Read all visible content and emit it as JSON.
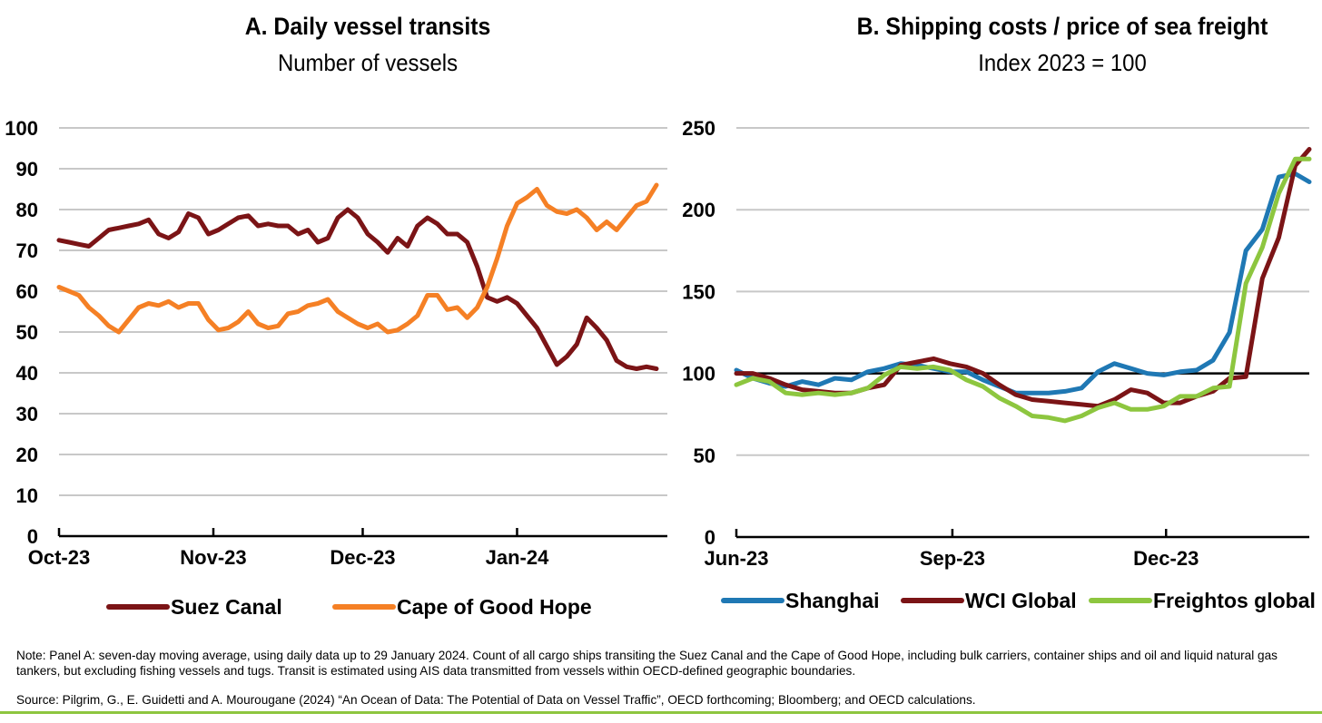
{
  "chart_data": [
    {
      "type": "line",
      "title": "A. Daily vessel transits",
      "subtitle": "Number of vessels",
      "xlabel": "",
      "ylabel": "",
      "x_tick_labels": [
        "Oct-23",
        "Nov-23",
        "Dec-23",
        "Jan-24"
      ],
      "y_ticks": [
        0,
        10,
        20,
        30,
        40,
        50,
        60,
        70,
        80,
        90,
        100
      ],
      "ylim": [
        0,
        100
      ],
      "x_range": [
        "2023-10-01",
        "2024-01-29"
      ],
      "grid": true,
      "legend_position": "bottom",
      "series": [
        {
          "name": "Suez Canal",
          "color": "#7b1416",
          "x": [
            "2023-10-01",
            "2023-10-03",
            "2023-10-05",
            "2023-10-07",
            "2023-10-09",
            "2023-10-11",
            "2023-10-13",
            "2023-10-15",
            "2023-10-17",
            "2023-10-19",
            "2023-10-21",
            "2023-10-23",
            "2023-10-25",
            "2023-10-27",
            "2023-10-29",
            "2023-10-31",
            "2023-11-02",
            "2023-11-04",
            "2023-11-06",
            "2023-11-08",
            "2023-11-10",
            "2023-11-12",
            "2023-11-14",
            "2023-11-16",
            "2023-11-18",
            "2023-11-20",
            "2023-11-22",
            "2023-11-24",
            "2023-11-26",
            "2023-11-28",
            "2023-11-30",
            "2023-12-02",
            "2023-12-04",
            "2023-12-06",
            "2023-12-08",
            "2023-12-10",
            "2023-12-12",
            "2023-12-14",
            "2023-12-16",
            "2023-12-18",
            "2023-12-20",
            "2023-12-22",
            "2023-12-24",
            "2023-12-26",
            "2023-12-28",
            "2023-12-30",
            "2024-01-01",
            "2024-01-03",
            "2024-01-05",
            "2024-01-07",
            "2024-01-09",
            "2024-01-11",
            "2024-01-13",
            "2024-01-15",
            "2024-01-17",
            "2024-01-19",
            "2024-01-21",
            "2024-01-23",
            "2024-01-25",
            "2024-01-27",
            "2024-01-29"
          ],
          "values": [
            72.5,
            72.0,
            71.5,
            71.0,
            73.0,
            75.0,
            75.5,
            76.0,
            76.5,
            77.5,
            74.0,
            73.0,
            74.5,
            79.0,
            78.0,
            74.0,
            75.0,
            76.5,
            78.0,
            78.5,
            76.0,
            76.5,
            76.0,
            76.0,
            74.0,
            75.0,
            72.0,
            73.0,
            78.0,
            80.0,
            78.0,
            74.0,
            72.0,
            69.5,
            73.0,
            71.0,
            76.0,
            78.0,
            76.5,
            74.0,
            74.0,
            72.0,
            66.0,
            58.5,
            57.5,
            58.5,
            57.0,
            54.0,
            51.0,
            46.5,
            42.0,
            44.0,
            47.0,
            53.5,
            51.0,
            48.0,
            43.0,
            41.5,
            41.0,
            41.5,
            41.0
          ]
        },
        {
          "name": "Cape of Good Hope",
          "color": "#f58025",
          "x": [
            "2023-10-01",
            "2023-10-03",
            "2023-10-05",
            "2023-10-07",
            "2023-10-09",
            "2023-10-11",
            "2023-10-13",
            "2023-10-15",
            "2023-10-17",
            "2023-10-19",
            "2023-10-21",
            "2023-10-23",
            "2023-10-25",
            "2023-10-27",
            "2023-10-29",
            "2023-10-31",
            "2023-11-02",
            "2023-11-04",
            "2023-11-06",
            "2023-11-08",
            "2023-11-10",
            "2023-11-12",
            "2023-11-14",
            "2023-11-16",
            "2023-11-18",
            "2023-11-20",
            "2023-11-22",
            "2023-11-24",
            "2023-11-26",
            "2023-11-28",
            "2023-11-30",
            "2023-12-02",
            "2023-12-04",
            "2023-12-06",
            "2023-12-08",
            "2023-12-10",
            "2023-12-12",
            "2023-12-14",
            "2023-12-16",
            "2023-12-18",
            "2023-12-20",
            "2023-12-22",
            "2023-12-24",
            "2023-12-26",
            "2023-12-28",
            "2023-12-30",
            "2024-01-01",
            "2024-01-03",
            "2024-01-05",
            "2024-01-07",
            "2024-01-09",
            "2024-01-11",
            "2024-01-13",
            "2024-01-15",
            "2024-01-17",
            "2024-01-19",
            "2024-01-21",
            "2024-01-23",
            "2024-01-25",
            "2024-01-27",
            "2024-01-29"
          ],
          "values": [
            61.0,
            60.0,
            59.0,
            56.0,
            54.0,
            51.5,
            50.0,
            53.0,
            56.0,
            57.0,
            56.5,
            57.5,
            56.0,
            57.0,
            57.0,
            53.0,
            50.5,
            51.0,
            52.5,
            55.0,
            52.0,
            51.0,
            51.5,
            54.5,
            55.0,
            56.5,
            57.0,
            58.0,
            55.0,
            53.5,
            52.0,
            51.0,
            52.0,
            50.0,
            50.5,
            52.0,
            54.0,
            59.0,
            59.0,
            55.5,
            56.0,
            53.5,
            56.0,
            61.0,
            68.0,
            76.0,
            81.5,
            83.0,
            85.0,
            81.0,
            79.5,
            79.0,
            80.0,
            78.0,
            75.0,
            77.0,
            75.0,
            78.0,
            81.0,
            82.0,
            86.0
          ]
        }
      ]
    },
    {
      "type": "line",
      "title": "B. Shipping costs / price of sea freight",
      "subtitle": "Index 2023  = 100",
      "xlabel": "",
      "ylabel": "",
      "x_tick_labels": [
        "Jun-23",
        "Sep-23",
        "Dec-23"
      ],
      "y_ticks": [
        0,
        50,
        100,
        150,
        200,
        250
      ],
      "ylim": [
        0,
        250
      ],
      "x_range": [
        "2023-06-01",
        "2024-01-31"
      ],
      "reference_line": 100,
      "grid": true,
      "legend_position": "bottom",
      "series": [
        {
          "name": "Shanghai",
          "color": "#1f78b4",
          "x": [
            "2023-06-01",
            "2023-06-08",
            "2023-06-15",
            "2023-06-22",
            "2023-06-29",
            "2023-07-06",
            "2023-07-13",
            "2023-07-20",
            "2023-07-27",
            "2023-08-03",
            "2023-08-10",
            "2023-08-17",
            "2023-08-24",
            "2023-08-31",
            "2023-09-07",
            "2023-09-14",
            "2023-09-21",
            "2023-09-28",
            "2023-10-05",
            "2023-10-12",
            "2023-10-19",
            "2023-10-26",
            "2023-11-02",
            "2023-11-09",
            "2023-11-16",
            "2023-11-23",
            "2023-11-30",
            "2023-12-07",
            "2023-12-14",
            "2023-12-21",
            "2023-12-28",
            "2024-01-04",
            "2024-01-11",
            "2024-01-18",
            "2024-01-25",
            "2024-01-31"
          ],
          "values": [
            102,
            97,
            94,
            92,
            95,
            93,
            97,
            96,
            101,
            103,
            106,
            105,
            103,
            101,
            101,
            96,
            92,
            88,
            88,
            88,
            89,
            91,
            101,
            106,
            103,
            100,
            99,
            101,
            102,
            108,
            125,
            175,
            188,
            220,
            222,
            217
          ]
        },
        {
          "name": "WCI Global",
          "color": "#7b1416",
          "x": [
            "2023-06-01",
            "2023-06-08",
            "2023-06-15",
            "2023-06-22",
            "2023-06-29",
            "2023-07-06",
            "2023-07-13",
            "2023-07-20",
            "2023-07-27",
            "2023-08-03",
            "2023-08-10",
            "2023-08-17",
            "2023-08-24",
            "2023-08-31",
            "2023-09-07",
            "2023-09-14",
            "2023-09-21",
            "2023-09-28",
            "2023-10-05",
            "2023-10-12",
            "2023-10-19",
            "2023-10-26",
            "2023-11-02",
            "2023-11-09",
            "2023-11-16",
            "2023-11-23",
            "2023-11-30",
            "2023-12-07",
            "2023-12-14",
            "2023-12-21",
            "2023-12-28",
            "2024-01-04",
            "2024-01-11",
            "2024-01-18",
            "2024-01-25",
            "2024-01-31"
          ],
          "values": [
            100,
            100,
            97,
            93,
            90,
            89,
            88,
            88,
            91,
            93,
            105,
            107,
            109,
            106,
            104,
            100,
            93,
            87,
            84,
            83,
            82,
            81,
            80,
            84,
            90,
            88,
            82,
            82,
            86,
            89,
            97,
            98,
            158,
            183,
            227,
            237
          ]
        },
        {
          "name": "Freightos global",
          "color": "#8dc63f",
          "x": [
            "2023-06-01",
            "2023-06-08",
            "2023-06-15",
            "2023-06-22",
            "2023-06-29",
            "2023-07-06",
            "2023-07-13",
            "2023-07-20",
            "2023-07-27",
            "2023-08-03",
            "2023-08-10",
            "2023-08-17",
            "2023-08-24",
            "2023-08-31",
            "2023-09-07",
            "2023-09-14",
            "2023-09-21",
            "2023-09-28",
            "2023-10-05",
            "2023-10-12",
            "2023-10-19",
            "2023-10-26",
            "2023-11-02",
            "2023-11-09",
            "2023-11-16",
            "2023-11-23",
            "2023-11-30",
            "2023-12-07",
            "2023-12-14",
            "2023-12-21",
            "2023-12-28",
            "2024-01-04",
            "2024-01-11",
            "2024-01-18",
            "2024-01-25",
            "2024-01-31"
          ],
          "values": [
            93,
            97,
            95,
            88,
            87,
            88,
            87,
            88,
            91,
            99,
            104,
            103,
            104,
            102,
            96,
            92,
            85,
            80,
            74,
            73,
            71,
            74,
            79,
            82,
            78,
            78,
            80,
            86,
            86,
            91,
            92,
            155,
            177,
            210,
            231,
            231
          ]
        }
      ]
    }
  ],
  "notes": {
    "note": "Note: Panel A: seven-day moving average, using daily data up to 29 January 2024. Count of all cargo ships transiting the Suez Canal and the Cape of Good Hope, including bulk carriers, container ships and oil and liquid natural gas tankers, but excluding fishing vessels and tugs. Transit is estimated using AIS data transmitted from vessels within OECD-defined geographic boundaries.",
    "source": "Source: Pilgrim, G., E. Guidetti and A. Mourougane (2024) “An Ocean of Data: The Potential of Data on Vessel Traffic”, OECD forthcoming; Bloomberg; and OECD calculations."
  },
  "colors": {
    "gridline": "#c8c8c8",
    "axis": "#000000",
    "bottom_rule": "#8dc63f"
  }
}
